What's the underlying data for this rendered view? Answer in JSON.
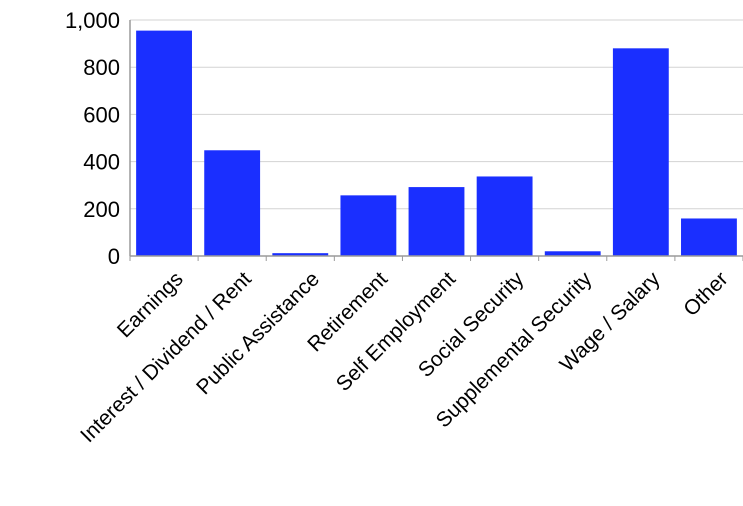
{
  "chart_data": {
    "type": "bar",
    "title": "",
    "xlabel": "",
    "ylabel": "",
    "categories": [
      "Earnings",
      "Interest / Dividend / Rent",
      "Public Assistance",
      "Retirement",
      "Self Employment",
      "Social Security",
      "Supplemental Security",
      "Wage / Salary",
      "Other"
    ],
    "values": [
      955,
      448,
      12,
      257,
      292,
      337,
      20,
      880,
      159
    ],
    "ylim": [
      0,
      1000
    ],
    "yticks": [
      0,
      200,
      400,
      600,
      800,
      1000
    ],
    "ytick_labels": [
      "0",
      "200",
      "400",
      "600",
      "800",
      "1,000"
    ],
    "grid": true,
    "legend": "none",
    "bar_color": "#1a2fff",
    "grid_color": "#d3d3d3",
    "axis_color": "#9a9a9a"
  }
}
